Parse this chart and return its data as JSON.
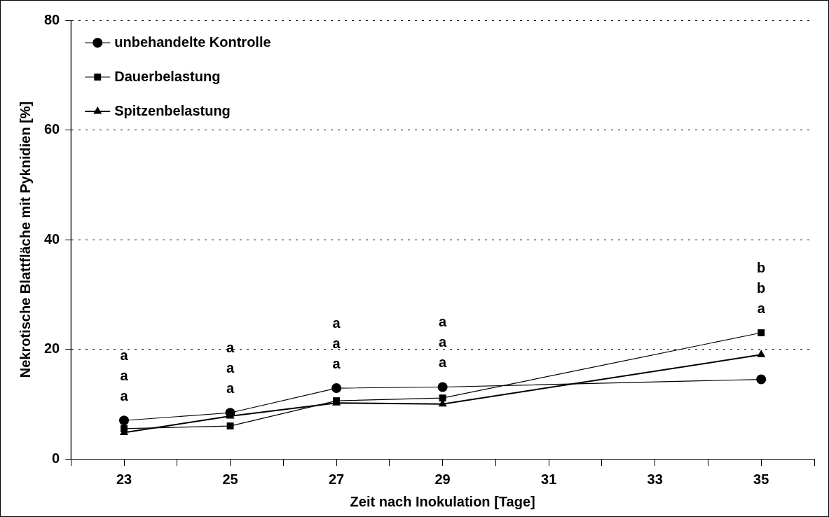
{
  "chart_data": {
    "type": "line",
    "xlabel": "Zeit nach Inokulation [Tage]",
    "ylabel": "Nekrotische Blattfläche mit Pyknidien [%]",
    "xlim": [
      22,
      36
    ],
    "xticks": [
      {
        "value": 22,
        "label": null
      },
      23,
      {
        "value": 24,
        "label": null
      },
      25,
      {
        "value": 26,
        "label": null
      },
      27,
      {
        "value": 28,
        "label": null
      },
      29,
      {
        "value": 30,
        "label": null
      },
      31,
      {
        "value": 32,
        "label": null
      },
      33,
      {
        "value": 34,
        "label": null
      },
      35,
      {
        "value": 36,
        "label": null
      }
    ],
    "ylim": [
      0,
      80
    ],
    "yticks": [
      0,
      20,
      40,
      60,
      80
    ],
    "grid": "y",
    "legend": "top left",
    "line_style": "solid",
    "x": [
      23,
      25,
      27,
      29,
      35
    ],
    "series": [
      {
        "name": "unbehandelte Kontrolle",
        "color": "#000000",
        "marker": "circle",
        "values": [
          7.0,
          8.4,
          12.9,
          13.1,
          14.5
        ]
      },
      {
        "name": "Dauerbelastung",
        "color": "#000000",
        "marker": "square",
        "values": [
          5.5,
          6.0,
          10.6,
          11.1,
          23.0
        ]
      },
      {
        "name": "Spitzenbelastung",
        "color": "#000000",
        "marker": "triangle",
        "values": [
          4.8,
          7.8,
          10.2,
          10.0,
          19.0
        ]
      }
    ],
    "annotations": [
      "a",
      "a",
      "a",
      "a",
      "a",
      "a",
      "a",
      "a",
      "a",
      "a",
      "a",
      "a",
      "b",
      "b",
      "a"
    ]
  }
}
